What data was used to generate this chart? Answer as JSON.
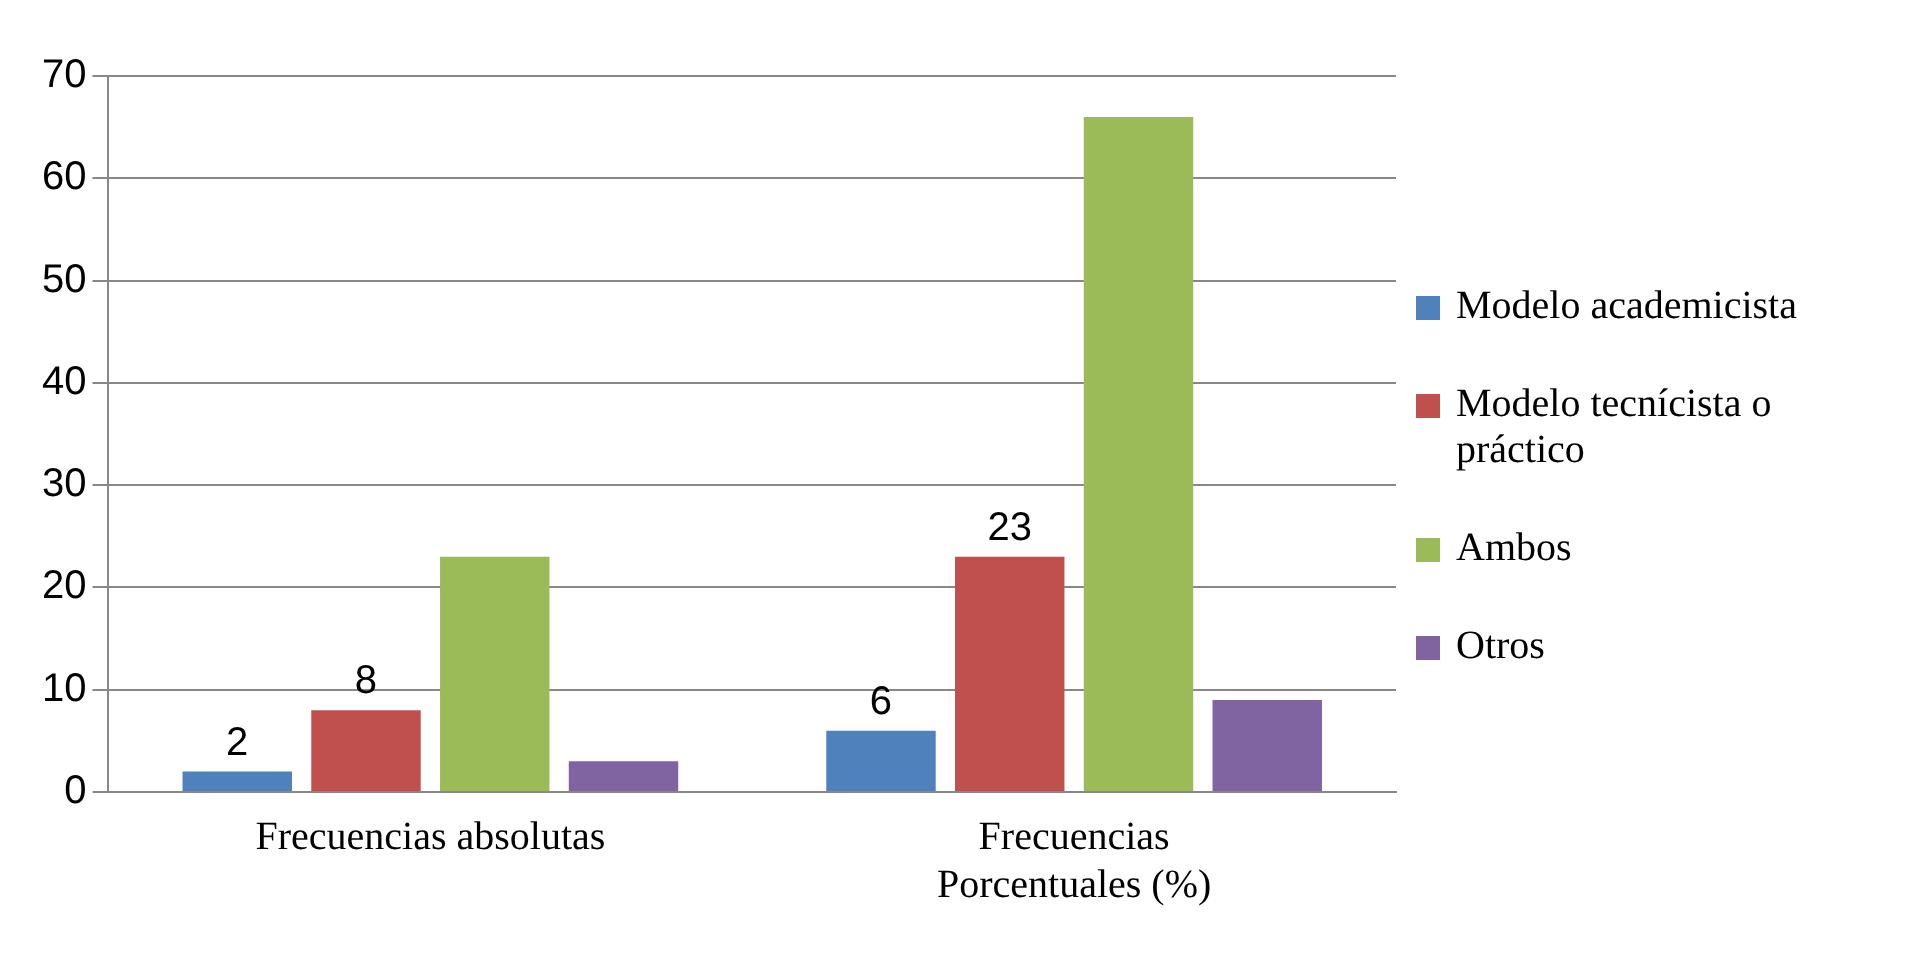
{
  "chart_data": {
    "type": "bar",
    "categories": [
      "Frecuencias absolutas",
      "Frecuencias Porcentuales (%)"
    ],
    "series": [
      {
        "name": "Modelo academicista",
        "color": "#4f81bd",
        "values": [
          2,
          6
        ],
        "value_labels": [
          "2",
          "6"
        ]
      },
      {
        "name": "Modelo tecnícista o práctico",
        "color": "#c0504d",
        "values": [
          8,
          23
        ],
        "value_labels": [
          "8",
          "23"
        ]
      },
      {
        "name": "Ambos",
        "color": "#9bbb59",
        "values": [
          23,
          66
        ],
        "value_labels": [
          null,
          null
        ]
      },
      {
        "name": "Otros",
        "color": "#8064a2",
        "values": [
          3,
          9
        ],
        "value_labels": [
          null,
          null
        ]
      }
    ],
    "ylim": [
      0,
      70
    ],
    "yticks": [
      0,
      10,
      20,
      30,
      40,
      50,
      60,
      70
    ],
    "grid": "y",
    "legend": "right"
  }
}
